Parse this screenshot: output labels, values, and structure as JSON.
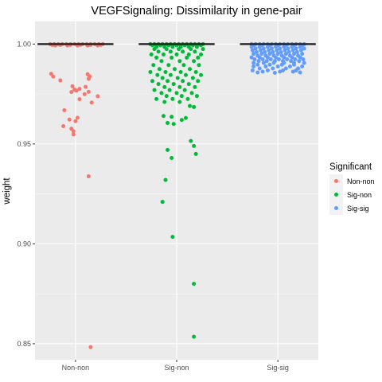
{
  "chart_data": {
    "type": "scatter",
    "title": "VEGFSignaling: Dissimilarity in gene-pair",
    "xlabel": "",
    "ylabel": "weight",
    "categories": [
      "Non-non",
      "Sig-non",
      "Sig-sig"
    ],
    "ylim": [
      0.842,
      1.0113
    ],
    "yticks": [
      0.85,
      0.9,
      0.95,
      1.0
    ],
    "ytick_labels": [
      "0.85",
      "0.90",
      "0.95",
      "1.00"
    ],
    "grid": true,
    "legend": {
      "title": "Significant",
      "position": "right"
    },
    "medians": [
      1.0,
      1.0,
      1.0
    ],
    "series": [
      {
        "name": "Non-non",
        "color": "#F8766D",
        "points": [
          [
            -0.25,
            1.0
          ],
          [
            -0.21,
            1.0
          ],
          [
            -0.17,
            1.0
          ],
          [
            -0.13,
            1.0
          ],
          [
            -0.09,
            1.0
          ],
          [
            -0.05,
            1.0
          ],
          [
            -0.01,
            1.0
          ],
          [
            0.03,
            1.0
          ],
          [
            0.07,
            1.0
          ],
          [
            0.11,
            1.0
          ],
          [
            0.15,
            1.0
          ],
          [
            0.19,
            1.0
          ],
          [
            0.23,
            1.0
          ],
          [
            0.27,
            1.0
          ],
          [
            -0.23,
            0.9996
          ],
          [
            -0.15,
            0.9996
          ],
          [
            -0.05,
            0.9996
          ],
          [
            0.05,
            0.9996
          ],
          [
            0.15,
            0.9996
          ],
          [
            0.25,
            0.9996
          ],
          [
            -0.2,
            0.9993
          ],
          [
            -0.08,
            0.9993
          ],
          [
            0.02,
            0.9993
          ],
          [
            0.12,
            0.9993
          ],
          [
            0.22,
            0.9993
          ],
          [
            -0.24,
            0.9851
          ],
          [
            -0.22,
            0.9837
          ],
          [
            0.12,
            0.9849
          ],
          [
            0.14,
            0.9838
          ],
          [
            0.13,
            0.9826
          ],
          [
            -0.15,
            0.9818
          ],
          [
            -0.03,
            0.9789
          ],
          [
            -0.01,
            0.9772
          ],
          [
            0.01,
            0.9767
          ],
          [
            0.04,
            0.9776
          ],
          [
            0.1,
            0.9786
          ],
          [
            -0.04,
            0.976
          ],
          [
            0.13,
            0.9761
          ],
          [
            0.22,
            0.9739
          ],
          [
            0.16,
            0.9707
          ],
          [
            0.04,
            0.9724
          ],
          [
            0.09,
            0.9749
          ],
          [
            -0.11,
            0.9669
          ],
          [
            0.02,
            0.9631
          ],
          [
            -0.06,
            0.9622
          ],
          [
            0.0,
            0.9614
          ],
          [
            -0.12,
            0.9589
          ],
          [
            -0.04,
            0.9576
          ],
          [
            -0.02,
            0.9564
          ],
          [
            -0.02,
            0.9548
          ],
          [
            0.13,
            0.9338
          ],
          [
            0.15,
            0.8483
          ]
        ]
      },
      {
        "name": "Sig-non",
        "color": "#00BA38",
        "points": [
          [
            -0.26,
            1.0
          ],
          [
            -0.22,
            1.0
          ],
          [
            -0.18,
            1.0
          ],
          [
            -0.14,
            1.0
          ],
          [
            -0.1,
            1.0
          ],
          [
            -0.06,
            1.0
          ],
          [
            -0.02,
            1.0
          ],
          [
            0.02,
            1.0
          ],
          [
            0.06,
            1.0
          ],
          [
            0.1,
            1.0
          ],
          [
            0.14,
            1.0
          ],
          [
            0.18,
            1.0
          ],
          [
            0.22,
            1.0
          ],
          [
            0.26,
            1.0
          ],
          [
            -0.24,
            0.9994
          ],
          [
            -0.16,
            0.9994
          ],
          [
            -0.08,
            0.9994
          ],
          [
            0.0,
            0.9994
          ],
          [
            0.08,
            0.9994
          ],
          [
            0.16,
            0.9994
          ],
          [
            0.24,
            0.9994
          ],
          [
            -0.2,
            0.9986
          ],
          [
            -0.12,
            0.9986
          ],
          [
            -0.04,
            0.9986
          ],
          [
            0.04,
            0.9986
          ],
          [
            0.12,
            0.9986
          ],
          [
            0.2,
            0.9986
          ],
          [
            -0.22,
            0.9975
          ],
          [
            -0.1,
            0.9975
          ],
          [
            0.02,
            0.9975
          ],
          [
            0.14,
            0.9975
          ],
          [
            0.26,
            0.9975
          ],
          [
            -0.18,
            0.9962
          ],
          [
            -0.06,
            0.9962
          ],
          [
            0.06,
            0.9962
          ],
          [
            0.18,
            0.9962
          ],
          [
            -0.25,
            0.9948
          ],
          [
            -0.13,
            0.9948
          ],
          [
            0.0,
            0.9948
          ],
          [
            0.12,
            0.9948
          ],
          [
            0.24,
            0.9948
          ],
          [
            -0.2,
            0.9932
          ],
          [
            -0.05,
            0.9932
          ],
          [
            0.1,
            0.9932
          ],
          [
            0.21,
            0.9932
          ],
          [
            -0.15,
            0.9915
          ],
          [
            0.03,
            0.9915
          ],
          [
            0.17,
            0.9915
          ],
          [
            -0.23,
            0.9895
          ],
          [
            -0.08,
            0.9895
          ],
          [
            0.07,
            0.9895
          ],
          [
            0.22,
            0.9895
          ],
          [
            -0.17,
            0.9875
          ],
          [
            -0.02,
            0.9875
          ],
          [
            0.13,
            0.9875
          ],
          [
            -0.26,
            0.986
          ],
          [
            -0.11,
            0.986
          ],
          [
            0.04,
            0.986
          ],
          [
            0.19,
            0.986
          ],
          [
            -0.19,
            0.9845
          ],
          [
            -0.06,
            0.9845
          ],
          [
            0.09,
            0.9845
          ],
          [
            0.24,
            0.9845
          ],
          [
            -0.14,
            0.983
          ],
          [
            0.01,
            0.983
          ],
          [
            0.16,
            0.983
          ],
          [
            -0.24,
            0.9815
          ],
          [
            -0.09,
            0.9815
          ],
          [
            0.06,
            0.9815
          ],
          [
            0.21,
            0.9815
          ],
          [
            -0.18,
            0.98
          ],
          [
            -0.03,
            0.98
          ],
          [
            0.12,
            0.98
          ],
          [
            -0.12,
            0.9785
          ],
          [
            0.03,
            0.9785
          ],
          [
            0.18,
            0.9785
          ],
          [
            -0.22,
            0.977
          ],
          [
            -0.07,
            0.977
          ],
          [
            0.08,
            0.977
          ],
          [
            -0.15,
            0.9755
          ],
          [
            0.0,
            0.9755
          ],
          [
            0.15,
            0.9755
          ],
          [
            -0.1,
            0.974
          ],
          [
            0.05,
            0.974
          ],
          [
            0.2,
            0.974
          ],
          [
            -0.2,
            0.9725
          ],
          [
            -0.04,
            0.9725
          ],
          [
            0.11,
            0.9725
          ],
          [
            -0.12,
            0.971
          ],
          [
            0.03,
            0.971
          ],
          [
            0.13,
            0.969
          ],
          [
            0.17,
            0.9685
          ],
          [
            -0.13,
            0.964
          ],
          [
            -0.05,
            0.9636
          ],
          [
            0.05,
            0.962
          ],
          [
            -0.09,
            0.9605
          ],
          [
            -0.03,
            0.96
          ],
          [
            0.09,
            0.963
          ],
          [
            0.14,
            0.9515
          ],
          [
            0.17,
            0.949
          ],
          [
            0.19,
            0.945
          ],
          [
            -0.09,
            0.947
          ],
          [
            -0.05,
            0.943
          ],
          [
            -0.11,
            0.932
          ],
          [
            -0.14,
            0.921
          ],
          [
            -0.04,
            0.9035
          ],
          [
            0.17,
            0.88
          ],
          [
            0.17,
            0.8535
          ]
        ]
      },
      {
        "name": "Sig-sig",
        "color": "#619CFF",
        "points": [
          [
            -0.26,
            1.0
          ],
          [
            -0.22,
            1.0
          ],
          [
            -0.18,
            1.0
          ],
          [
            -0.14,
            1.0
          ],
          [
            -0.1,
            1.0
          ],
          [
            -0.06,
            1.0
          ],
          [
            -0.02,
            1.0
          ],
          [
            0.02,
            1.0
          ],
          [
            0.06,
            1.0
          ],
          [
            0.1,
            1.0
          ],
          [
            0.14,
            1.0
          ],
          [
            0.18,
            1.0
          ],
          [
            0.22,
            1.0
          ],
          [
            0.26,
            1.0
          ],
          [
            -0.24,
            0.9994
          ],
          [
            -0.16,
            0.9994
          ],
          [
            -0.08,
            0.9994
          ],
          [
            0.0,
            0.9994
          ],
          [
            0.08,
            0.9994
          ],
          [
            0.16,
            0.9994
          ],
          [
            0.24,
            0.9994
          ],
          [
            -0.26,
            0.9986
          ],
          [
            -0.18,
            0.9986
          ],
          [
            -0.1,
            0.9986
          ],
          [
            -0.02,
            0.9986
          ],
          [
            0.06,
            0.9986
          ],
          [
            0.14,
            0.9986
          ],
          [
            0.22,
            0.9986
          ],
          [
            -0.22,
            0.9978
          ],
          [
            -0.14,
            0.9978
          ],
          [
            -0.06,
            0.9978
          ],
          [
            0.02,
            0.9978
          ],
          [
            0.1,
            0.9978
          ],
          [
            0.18,
            0.9978
          ],
          [
            0.26,
            0.9978
          ],
          [
            -0.25,
            0.9969
          ],
          [
            -0.17,
            0.9969
          ],
          [
            -0.09,
            0.9969
          ],
          [
            -0.01,
            0.9969
          ],
          [
            0.07,
            0.9969
          ],
          [
            0.15,
            0.9969
          ],
          [
            0.23,
            0.9969
          ],
          [
            -0.21,
            0.996
          ],
          [
            -0.13,
            0.996
          ],
          [
            -0.05,
            0.996
          ],
          [
            0.03,
            0.996
          ],
          [
            0.11,
            0.996
          ],
          [
            0.19,
            0.996
          ],
          [
            -0.24,
            0.9951
          ],
          [
            -0.16,
            0.9951
          ],
          [
            -0.08,
            0.9951
          ],
          [
            0.0,
            0.9951
          ],
          [
            0.08,
            0.9951
          ],
          [
            0.16,
            0.9951
          ],
          [
            0.24,
            0.9951
          ],
          [
            -0.2,
            0.9942
          ],
          [
            -0.12,
            0.9942
          ],
          [
            -0.04,
            0.9942
          ],
          [
            0.04,
            0.9942
          ],
          [
            0.12,
            0.9942
          ],
          [
            0.2,
            0.9942
          ],
          [
            -0.26,
            0.9933
          ],
          [
            -0.18,
            0.9933
          ],
          [
            -0.1,
            0.9933
          ],
          [
            -0.02,
            0.9933
          ],
          [
            0.06,
            0.9933
          ],
          [
            0.14,
            0.9933
          ],
          [
            0.22,
            0.9933
          ],
          [
            -0.23,
            0.9924
          ],
          [
            -0.15,
            0.9924
          ],
          [
            -0.07,
            0.9924
          ],
          [
            0.01,
            0.9924
          ],
          [
            0.09,
            0.9924
          ],
          [
            0.17,
            0.9924
          ],
          [
            0.25,
            0.9924
          ],
          [
            -0.19,
            0.9915
          ],
          [
            -0.11,
            0.9915
          ],
          [
            -0.03,
            0.9915
          ],
          [
            0.05,
            0.9915
          ],
          [
            0.13,
            0.9915
          ],
          [
            0.21,
            0.9915
          ],
          [
            -0.24,
            0.9906
          ],
          [
            -0.14,
            0.9906
          ],
          [
            -0.04,
            0.9906
          ],
          [
            0.06,
            0.9906
          ],
          [
            0.16,
            0.9906
          ],
          [
            0.26,
            0.9906
          ],
          [
            -0.2,
            0.9897
          ],
          [
            -0.08,
            0.9897
          ],
          [
            0.04,
            0.9897
          ],
          [
            0.16,
            0.9897
          ],
          [
            -0.24,
            0.9888
          ],
          [
            -0.12,
            0.9888
          ],
          [
            0.0,
            0.9888
          ],
          [
            0.12,
            0.9888
          ],
          [
            0.24,
            0.9888
          ],
          [
            -0.18,
            0.9878
          ],
          [
            -0.05,
            0.9878
          ],
          [
            0.08,
            0.9878
          ],
          [
            0.2,
            0.9878
          ],
          [
            -0.25,
            0.9868
          ],
          [
            -0.1,
            0.9868
          ],
          [
            0.05,
            0.9868
          ],
          [
            0.18,
            0.9868
          ],
          [
            -0.15,
            0.9862
          ],
          [
            0.02,
            0.9862
          ],
          [
            0.15,
            0.9862
          ],
          [
            0.22,
            0.9858
          ],
          [
            -0.2,
            0.9858
          ],
          [
            -0.03,
            0.9856
          ]
        ]
      }
    ]
  }
}
